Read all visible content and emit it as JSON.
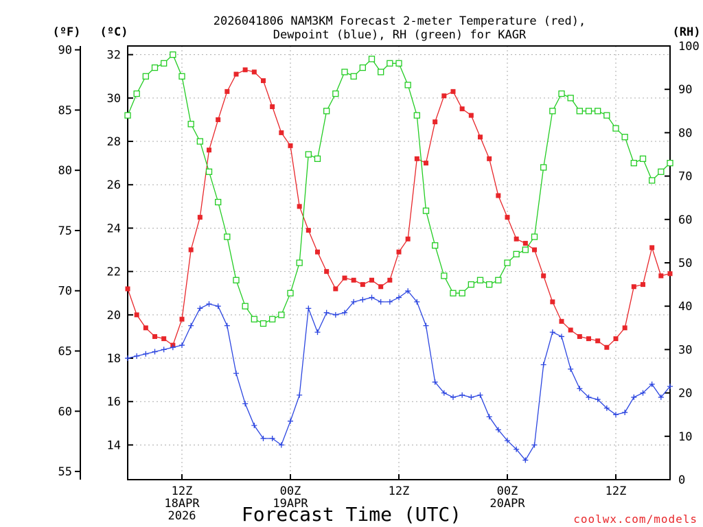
{
  "chart_data": {
    "type": "line",
    "title": [
      "2026041806 NAM3KM Forecast 2-meter Temperature (red),",
      "Dewpoint (blue), RH (green) for KAGR"
    ],
    "xlabel": "Forecast Time (UTC)",
    "credit": "coolwx.com/models",
    "axis_labels": {
      "left_f": "(ºF)",
      "left_c": "(ºC)",
      "right_rh": "(RH)"
    },
    "x_hours_range": [
      0,
      60
    ],
    "x_ticks": [
      {
        "hour": 6,
        "labels": [
          "12Z",
          "18APR",
          "2026"
        ]
      },
      {
        "hour": 18,
        "labels": [
          "00Z",
          "19APR"
        ]
      },
      {
        "hour": 30,
        "labels": [
          "12Z"
        ]
      },
      {
        "hour": 42,
        "labels": [
          "00Z",
          "20APR"
        ]
      },
      {
        "hour": 54,
        "labels": [
          "12Z"
        ]
      }
    ],
    "celsius_range": [
      12.4,
      32.4
    ],
    "celsius_ticks": [
      14,
      16,
      18,
      20,
      22,
      24,
      26,
      28,
      30,
      32
    ],
    "fahrenheit_ticks": [
      55,
      60,
      65,
      70,
      75,
      80,
      85,
      90
    ],
    "rh_range": [
      0,
      100
    ],
    "rh_ticks": [
      0,
      10,
      20,
      30,
      40,
      50,
      60,
      70,
      80,
      90,
      100
    ],
    "series": [
      {
        "name": "2-meter Temperature",
        "unit": "C",
        "color": "#e8262a",
        "marker": "filled-square",
        "x": [
          0,
          1,
          2,
          3,
          4,
          5,
          6,
          7,
          8,
          9,
          10,
          11,
          12,
          13,
          14,
          15,
          16,
          17,
          18,
          19,
          20,
          21,
          22,
          23,
          24,
          25,
          26,
          27,
          28,
          29,
          30,
          31,
          32,
          33,
          34,
          35,
          36,
          37,
          38,
          39,
          40,
          41,
          42,
          43,
          44,
          45,
          46,
          47,
          48,
          49,
          50,
          51,
          52,
          53,
          54,
          55,
          56,
          57,
          58,
          59,
          60
        ],
        "values": [
          21.2,
          20.0,
          19.4,
          19.0,
          18.9,
          18.6,
          19.8,
          23.0,
          24.5,
          27.6,
          29.0,
          30.3,
          31.1,
          31.3,
          31.2,
          30.8,
          29.6,
          28.4,
          27.8,
          25.0,
          23.9,
          22.9,
          22.0,
          21.2,
          21.7,
          21.6,
          21.4,
          21.6,
          21.3,
          21.6,
          22.9,
          23.5,
          27.2,
          27.0,
          28.9,
          30.1,
          30.3,
          29.5,
          29.2,
          28.2,
          27.2,
          25.5,
          24.5,
          23.5,
          23.3,
          23.0,
          21.8,
          20.6,
          19.7,
          19.3,
          19.0,
          18.9,
          18.8,
          18.5,
          18.9,
          19.4,
          21.3,
          21.4,
          23.1,
          21.8,
          21.9
        ]
      },
      {
        "name": "Dewpoint",
        "unit": "C",
        "color": "#2b45e0",
        "marker": "plus",
        "x": [
          0,
          1,
          2,
          3,
          4,
          5,
          6,
          7,
          8,
          9,
          10,
          11,
          12,
          13,
          14,
          15,
          16,
          17,
          18,
          19,
          20,
          21,
          22,
          23,
          24,
          25,
          26,
          27,
          28,
          29,
          30,
          31,
          32,
          33,
          34,
          35,
          36,
          37,
          38,
          39,
          40,
          41,
          42,
          43,
          44,
          45,
          46,
          47,
          48,
          49,
          50,
          51,
          52,
          53,
          54,
          55,
          56,
          57,
          58,
          59,
          60
        ],
        "values": [
          18.0,
          18.1,
          18.2,
          18.3,
          18.4,
          18.5,
          18.6,
          19.5,
          20.3,
          20.5,
          20.4,
          19.5,
          17.3,
          15.9,
          14.9,
          14.3,
          14.3,
          14.0,
          15.1,
          16.3,
          20.3,
          19.2,
          20.1,
          20.0,
          20.1,
          20.6,
          20.7,
          20.8,
          20.6,
          20.6,
          20.8,
          21.1,
          20.6,
          19.5,
          16.9,
          16.4,
          16.2,
          16.3,
          16.2,
          16.3,
          15.3,
          14.7,
          14.2,
          13.8,
          13.3,
          14.0,
          17.7,
          19.2,
          19.0,
          17.5,
          16.6,
          16.2,
          16.1,
          15.7,
          15.4,
          15.5,
          16.2,
          16.4,
          16.8,
          16.2,
          16.7
        ]
      },
      {
        "name": "RH",
        "unit": "%",
        "color": "#22cc22",
        "marker": "open-square",
        "x": [
          0,
          1,
          2,
          3,
          4,
          5,
          6,
          7,
          8,
          9,
          10,
          11,
          12,
          13,
          14,
          15,
          16,
          17,
          18,
          19,
          20,
          21,
          22,
          23,
          24,
          25,
          26,
          27,
          28,
          29,
          30,
          31,
          32,
          33,
          34,
          35,
          36,
          37,
          38,
          39,
          40,
          41,
          42,
          43,
          44,
          45,
          46,
          47,
          48,
          49,
          50,
          51,
          52,
          53,
          54,
          55,
          56,
          57,
          58,
          59,
          60
        ],
        "values": [
          84,
          89,
          93,
          95,
          96,
          98,
          93,
          82,
          78,
          71,
          64,
          56,
          46,
          40,
          37,
          36,
          37,
          38,
          43,
          50,
          75,
          74,
          85,
          89,
          94,
          93,
          95,
          97,
          94,
          96,
          96,
          91,
          84,
          62,
          54,
          47,
          43,
          43,
          45,
          46,
          45,
          46,
          50,
          52,
          53,
          56,
          72,
          85,
          89,
          88,
          85,
          85,
          85,
          84,
          81,
          79,
          73,
          74,
          69,
          71,
          73
        ]
      }
    ]
  }
}
